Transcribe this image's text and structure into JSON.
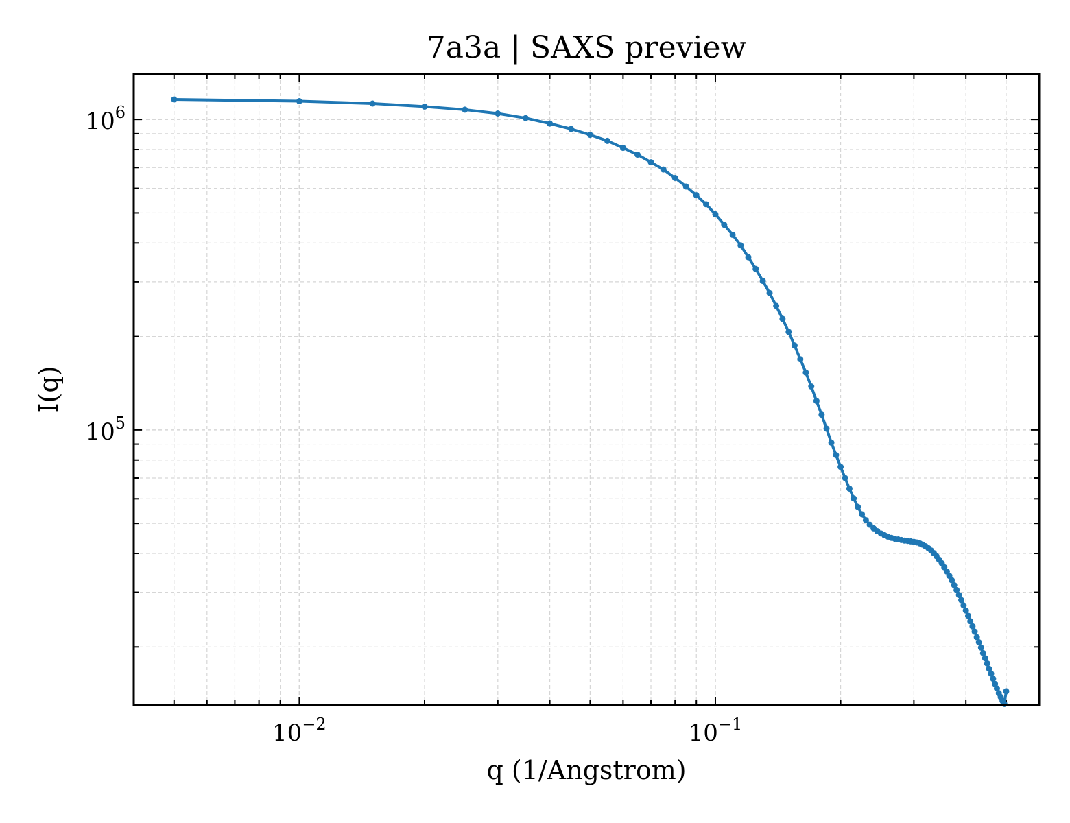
{
  "chart_data": {
    "type": "line",
    "title": "7a3a | SAXS preview",
    "xlabel": "q (1/Angstrom)",
    "ylabel": "I(q)",
    "xscale": "log",
    "yscale": "log",
    "xlim": [
      0.004,
      0.6
    ],
    "ylim": [
      13000,
      1400000
    ],
    "grid": true,
    "legend": "none",
    "x_tick_labels": [
      {
        "value": 0.01,
        "base": "10",
        "exp": "−2"
      },
      {
        "value": 0.1,
        "base": "10",
        "exp": "−1"
      }
    ],
    "y_tick_labels": [
      {
        "value": 100000,
        "base": "10",
        "exp": "5"
      },
      {
        "value": 1000000,
        "base": "10",
        "exp": "6"
      }
    ],
    "series": [
      {
        "color": "#1f77b4",
        "marker": "circle",
        "x": [
          0.005,
          0.01,
          0.015,
          0.02,
          0.025,
          0.03,
          0.035,
          0.04,
          0.045,
          0.05,
          0.055,
          0.06,
          0.065,
          0.07,
          0.075,
          0.08,
          0.085,
          0.09,
          0.095,
          0.1,
          0.105,
          0.11,
          0.115,
          0.12,
          0.125,
          0.13,
          0.135,
          0.14,
          0.145,
          0.15,
          0.155,
          0.16,
          0.165,
          0.17,
          0.175,
          0.18,
          0.185,
          0.19,
          0.195,
          0.2,
          0.205,
          0.21,
          0.215,
          0.22,
          0.225,
          0.23,
          0.235,
          0.24,
          0.245,
          0.25,
          0.255,
          0.26,
          0.265,
          0.27,
          0.275,
          0.28,
          0.285,
          0.29,
          0.295,
          0.3,
          0.305,
          0.31,
          0.315,
          0.32,
          0.325,
          0.33,
          0.335,
          0.34,
          0.345,
          0.35,
          0.355,
          0.36,
          0.365,
          0.37,
          0.375,
          0.38,
          0.385,
          0.39,
          0.395,
          0.4,
          0.405,
          0.41,
          0.415,
          0.42,
          0.425,
          0.43,
          0.435,
          0.44,
          0.445,
          0.45,
          0.455,
          0.46,
          0.465,
          0.47,
          0.475,
          0.48,
          0.485,
          0.49,
          0.495,
          0.5
        ],
        "y": [
          1160000,
          1145000,
          1125000,
          1100000,
          1075000,
          1045000,
          1010000,
          970000,
          932000,
          892000,
          853000,
          810000,
          770000,
          728000,
          690000,
          648000,
          608000,
          570000,
          533000,
          495000,
          458000,
          425000,
          393000,
          360000,
          330000,
          302000,
          276000,
          251000,
          228000,
          207000,
          187000,
          169000,
          153000,
          138000,
          124000,
          112000,
          101000,
          91000,
          83000,
          76000,
          70000,
          64700,
          60200,
          56500,
          53500,
          51200,
          49500,
          48200,
          47200,
          46400,
          45800,
          45300,
          44900,
          44600,
          44400,
          44200,
          44000,
          43900,
          43750,
          43600,
          43400,
          43100,
          42700,
          42200,
          41600,
          40900,
          40100,
          39200,
          38200,
          37200,
          36100,
          35000,
          33900,
          32800,
          31600,
          30500,
          29400,
          28300,
          27200,
          26200,
          25200,
          24200,
          23300,
          22400,
          21500,
          20700,
          19900,
          19100,
          18400,
          17700,
          17000,
          16400,
          15800,
          15200,
          14700,
          14200,
          13800,
          13400,
          13100,
          14400
        ]
      }
    ]
  }
}
